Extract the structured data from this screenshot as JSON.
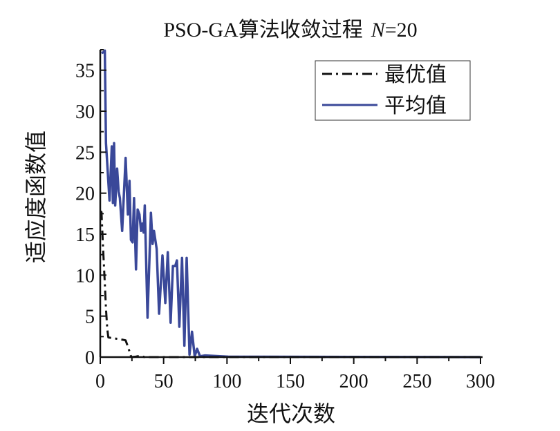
{
  "chart_data": {
    "type": "line",
    "title": "PSO-GA算法收敛过程",
    "title_param": "N",
    "title_value": "=20",
    "xlabel": "迭代次数",
    "ylabel": "适应度函数值",
    "xlim": [
      0,
      300
    ],
    "ylim": [
      0,
      37.5
    ],
    "xticks": [
      0,
      50,
      100,
      150,
      200,
      250,
      300
    ],
    "yticks": [
      0,
      5,
      10,
      15,
      20,
      25,
      30,
      35
    ],
    "legend_position": "top-right",
    "grid": false,
    "series": [
      {
        "name": "最优值",
        "color": "#111111",
        "style": "dash-dot",
        "x": [
          0,
          1,
          2,
          3.6,
          4.5,
          5.5,
          6.4,
          10,
          15,
          20,
          22,
          24.5,
          28,
          31,
          35,
          300
        ],
        "y": [
          17.8,
          17.7,
          14,
          9.0,
          5.9,
          3.5,
          2.4,
          2.3,
          2.2,
          2.05,
          1.2,
          0,
          0.05,
          0.15,
          0,
          0
        ]
      },
      {
        "name": "平均值",
        "color": "#3a4899",
        "style": "solid",
        "x": [
          1,
          2.7,
          3.6,
          4.5,
          7.3,
          9.1,
          10,
          10.9,
          11.8,
          13.3,
          14.5,
          15.5,
          17.3,
          20,
          21.8,
          23.1,
          24.2,
          25.5,
          26.7,
          28.2,
          29.5,
          30.9,
          32.2,
          33.3,
          34.2,
          35.1,
          37.3,
          40,
          41.3,
          42.4,
          44.5,
          46.4,
          49.1,
          51.3,
          53.3,
          55.5,
          57.3,
          59.1,
          60.5,
          62.4,
          64.5,
          66.4,
          68.2,
          70.4,
          72.4,
          74.5,
          76.4,
          78.7,
          82.7,
          100.9,
          300
        ],
        "y": [
          37.1,
          37.2,
          37.4,
          26.1,
          19.1,
          25.7,
          18.8,
          26.1,
          18.5,
          23.0,
          20.2,
          19.4,
          15.4,
          24.3,
          17.4,
          21.5,
          14.3,
          14.0,
          19.4,
          10.7,
          18.0,
          17.4,
          15.4,
          16.3,
          15.2,
          18.5,
          4.8,
          17.6,
          13.8,
          15.4,
          13.2,
          5.3,
          12.4,
          6.6,
          12.8,
          4.2,
          11.1,
          11.1,
          11.8,
          3.7,
          12.1,
          1.4,
          12.1,
          0.3,
          3.1,
          0.1,
          1.0,
          0.1,
          0.2,
          0.05,
          0
        ]
      }
    ]
  }
}
